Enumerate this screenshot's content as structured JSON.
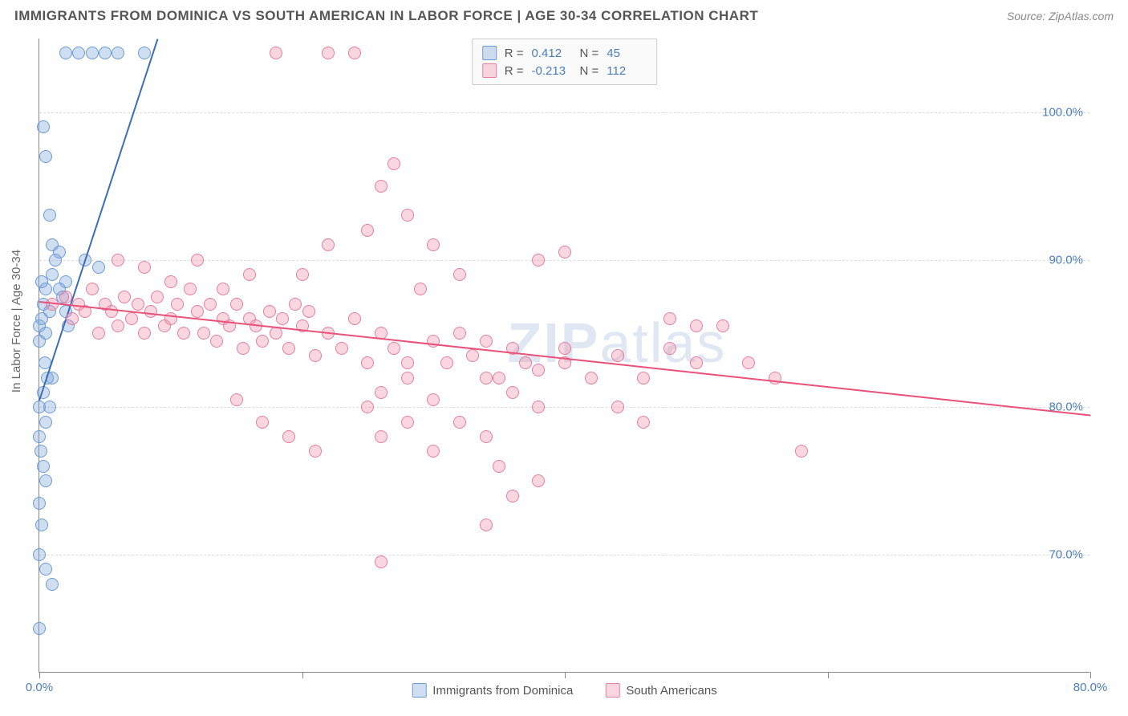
{
  "title": "IMMIGRANTS FROM DOMINICA VS SOUTH AMERICAN IN LABOR FORCE | AGE 30-34 CORRELATION CHART",
  "source": "Source: ZipAtlas.com",
  "ylabel": "In Labor Force | Age 30-34",
  "watermark_a": "ZIP",
  "watermark_b": "atlas",
  "chart": {
    "type": "scatter",
    "xlim": [
      0,
      80
    ],
    "ylim": [
      62,
      105
    ],
    "xticks": [
      0,
      20,
      40,
      60,
      80
    ],
    "xtick_labels": [
      "0.0%",
      "",
      "",
      "",
      "80.0%"
    ],
    "yticks": [
      70,
      80,
      90,
      100
    ],
    "ytick_labels": [
      "70.0%",
      "80.0%",
      "90.0%",
      "100.0%"
    ],
    "grid_color": "#dddddd",
    "axis_color": "#888888",
    "background": "#ffffff",
    "tick_color": "#4a7ebb",
    "series": [
      {
        "name": "Immigrants from Dominica",
        "color_fill": "rgba(120,160,215,0.35)",
        "color_stroke": "#6a9bd8",
        "marker_size": 16,
        "R": "0.412",
        "N": "45",
        "trend": {
          "x1": 0,
          "y1": 80.5,
          "x2": 9,
          "y2": 105,
          "color": "#3c6db5",
          "width": 2
        },
        "points": [
          [
            0.0,
            85.5
          ],
          [
            0.0,
            84.5
          ],
          [
            0.3,
            87.0
          ],
          [
            0.2,
            86.0
          ],
          [
            0.5,
            85.0
          ],
          [
            0.5,
            88.0
          ],
          [
            0.4,
            83.0
          ],
          [
            0.6,
            82.0
          ],
          [
            0.3,
            81.0
          ],
          [
            0.8,
            86.5
          ],
          [
            0.2,
            88.5
          ],
          [
            0.0,
            80.0
          ],
          [
            0.0,
            78.0
          ],
          [
            0.1,
            77.0
          ],
          [
            0.3,
            76.0
          ],
          [
            0.5,
            75.0
          ],
          [
            0.0,
            73.5
          ],
          [
            0.2,
            72.0
          ],
          [
            0.0,
            70.0
          ],
          [
            0.5,
            69.0
          ],
          [
            1.0,
            68.0
          ],
          [
            0.0,
            65.0
          ],
          [
            0.3,
            99.0
          ],
          [
            0.5,
            97.0
          ],
          [
            0.8,
            93.0
          ],
          [
            1.0,
            91.0
          ],
          [
            1.2,
            90.0
          ],
          [
            1.0,
            89.0
          ],
          [
            1.5,
            88.0
          ],
          [
            1.8,
            87.5
          ],
          [
            2.0,
            86.5
          ],
          [
            2.0,
            88.5
          ],
          [
            2.2,
            85.5
          ],
          [
            1.5,
            90.5
          ],
          [
            2.0,
            104.0
          ],
          [
            3.0,
            104.0
          ],
          [
            4.0,
            104.0
          ],
          [
            5.0,
            104.0
          ],
          [
            6.0,
            104.0
          ],
          [
            8.0,
            104.0
          ],
          [
            3.5,
            90.0
          ],
          [
            4.5,
            89.5
          ],
          [
            1.0,
            82.0
          ],
          [
            0.8,
            80.0
          ],
          [
            0.5,
            79.0
          ]
        ]
      },
      {
        "name": "South Americans",
        "color_fill": "rgba(240,140,165,0.35)",
        "color_stroke": "#e77da0",
        "marker_size": 16,
        "R": "-0.213",
        "N": "112",
        "trend": {
          "x1": 0,
          "y1": 87.2,
          "x2": 80,
          "y2": 79.5,
          "color": "#e8517a",
          "width": 2
        },
        "points": [
          [
            1.0,
            87.0
          ],
          [
            2.0,
            87.5
          ],
          [
            2.5,
            86.0
          ],
          [
            3.0,
            87.0
          ],
          [
            3.5,
            86.5
          ],
          [
            4.0,
            88.0
          ],
          [
            4.5,
            85.0
          ],
          [
            5.0,
            87.0
          ],
          [
            5.5,
            86.5
          ],
          [
            6.0,
            85.5
          ],
          [
            6.5,
            87.5
          ],
          [
            7.0,
            86.0
          ],
          [
            7.5,
            87.0
          ],
          [
            8.0,
            85.0
          ],
          [
            8.5,
            86.5
          ],
          [
            9.0,
            87.5
          ],
          [
            9.5,
            85.5
          ],
          [
            10.0,
            86.0
          ],
          [
            10.5,
            87.0
          ],
          [
            11.0,
            85.0
          ],
          [
            11.5,
            88.0
          ],
          [
            12.0,
            86.5
          ],
          [
            12.5,
            85.0
          ],
          [
            13.0,
            87.0
          ],
          [
            13.5,
            84.5
          ],
          [
            14.0,
            86.0
          ],
          [
            14.5,
            85.5
          ],
          [
            15.0,
            87.0
          ],
          [
            15.5,
            84.0
          ],
          [
            16.0,
            86.0
          ],
          [
            16.5,
            85.5
          ],
          [
            17.0,
            84.5
          ],
          [
            17.5,
            86.5
          ],
          [
            18.0,
            85.0
          ],
          [
            18.5,
            86.0
          ],
          [
            19.0,
            84.0
          ],
          [
            19.5,
            87.0
          ],
          [
            20.0,
            85.5
          ],
          [
            20.5,
            86.5
          ],
          [
            21.0,
            83.5
          ],
          [
            22.0,
            85.0
          ],
          [
            23.0,
            84.0
          ],
          [
            24.0,
            86.0
          ],
          [
            25.0,
            83.0
          ],
          [
            26.0,
            85.0
          ],
          [
            27.0,
            84.0
          ],
          [
            28.0,
            83.0
          ],
          [
            26.0,
            95.0
          ],
          [
            29.0,
            88.0
          ],
          [
            30.0,
            84.5
          ],
          [
            31.0,
            83.0
          ],
          [
            32.0,
            85.0
          ],
          [
            33.0,
            83.5
          ],
          [
            34.0,
            84.5
          ],
          [
            35.0,
            82.0
          ],
          [
            36.0,
            84.0
          ],
          [
            37.0,
            83.0
          ],
          [
            38.0,
            82.5
          ],
          [
            25.0,
            80.0
          ],
          [
            26.0,
            78.0
          ],
          [
            28.0,
            79.0
          ],
          [
            30.0,
            77.0
          ],
          [
            30.0,
            91.0
          ],
          [
            32.0,
            89.0
          ],
          [
            34.0,
            82.0
          ],
          [
            36.0,
            81.0
          ],
          [
            38.0,
            80.0
          ],
          [
            40.0,
            84.0
          ],
          [
            42.0,
            82.0
          ],
          [
            40.0,
            83.0
          ],
          [
            44.0,
            83.5
          ],
          [
            46.0,
            82.0
          ],
          [
            48.0,
            84.0
          ],
          [
            50.0,
            83.0
          ],
          [
            52.0,
            85.5
          ],
          [
            54.0,
            83.0
          ],
          [
            56.0,
            82.0
          ],
          [
            58.0,
            77.0
          ],
          [
            38.0,
            90.0
          ],
          [
            40.0,
            90.5
          ],
          [
            18.0,
            104.0
          ],
          [
            22.0,
            104.0
          ],
          [
            24.0,
            104.0
          ],
          [
            20.0,
            89.0
          ],
          [
            22.0,
            91.0
          ],
          [
            25.0,
            92.0
          ],
          [
            28.0,
            93.0
          ],
          [
            27.0,
            96.5
          ],
          [
            26.0,
            81.0
          ],
          [
            28.0,
            82.0
          ],
          [
            30.0,
            80.5
          ],
          [
            32.0,
            79.0
          ],
          [
            34.0,
            78.0
          ],
          [
            36.0,
            74.0
          ],
          [
            34.0,
            72.0
          ],
          [
            26.0,
            69.5
          ],
          [
            15.0,
            80.5
          ],
          [
            17.0,
            79.0
          ],
          [
            19.0,
            78.0
          ],
          [
            21.0,
            77.0
          ],
          [
            6.0,
            90.0
          ],
          [
            8.0,
            89.5
          ],
          [
            10.0,
            88.5
          ],
          [
            12.0,
            90.0
          ],
          [
            14.0,
            88.0
          ],
          [
            16.0,
            89.0
          ],
          [
            48.0,
            86.0
          ],
          [
            50.0,
            85.5
          ],
          [
            44.0,
            80.0
          ],
          [
            46.0,
            79.0
          ],
          [
            35.0,
            76.0
          ],
          [
            38.0,
            75.0
          ]
        ]
      }
    ],
    "legend_bottom": [
      {
        "label": "Immigrants from Dominica",
        "fill": "rgba(120,160,215,0.35)",
        "stroke": "#6a9bd8"
      },
      {
        "label": "South Americans",
        "fill": "rgba(240,140,165,0.35)",
        "stroke": "#e77da0"
      }
    ]
  }
}
